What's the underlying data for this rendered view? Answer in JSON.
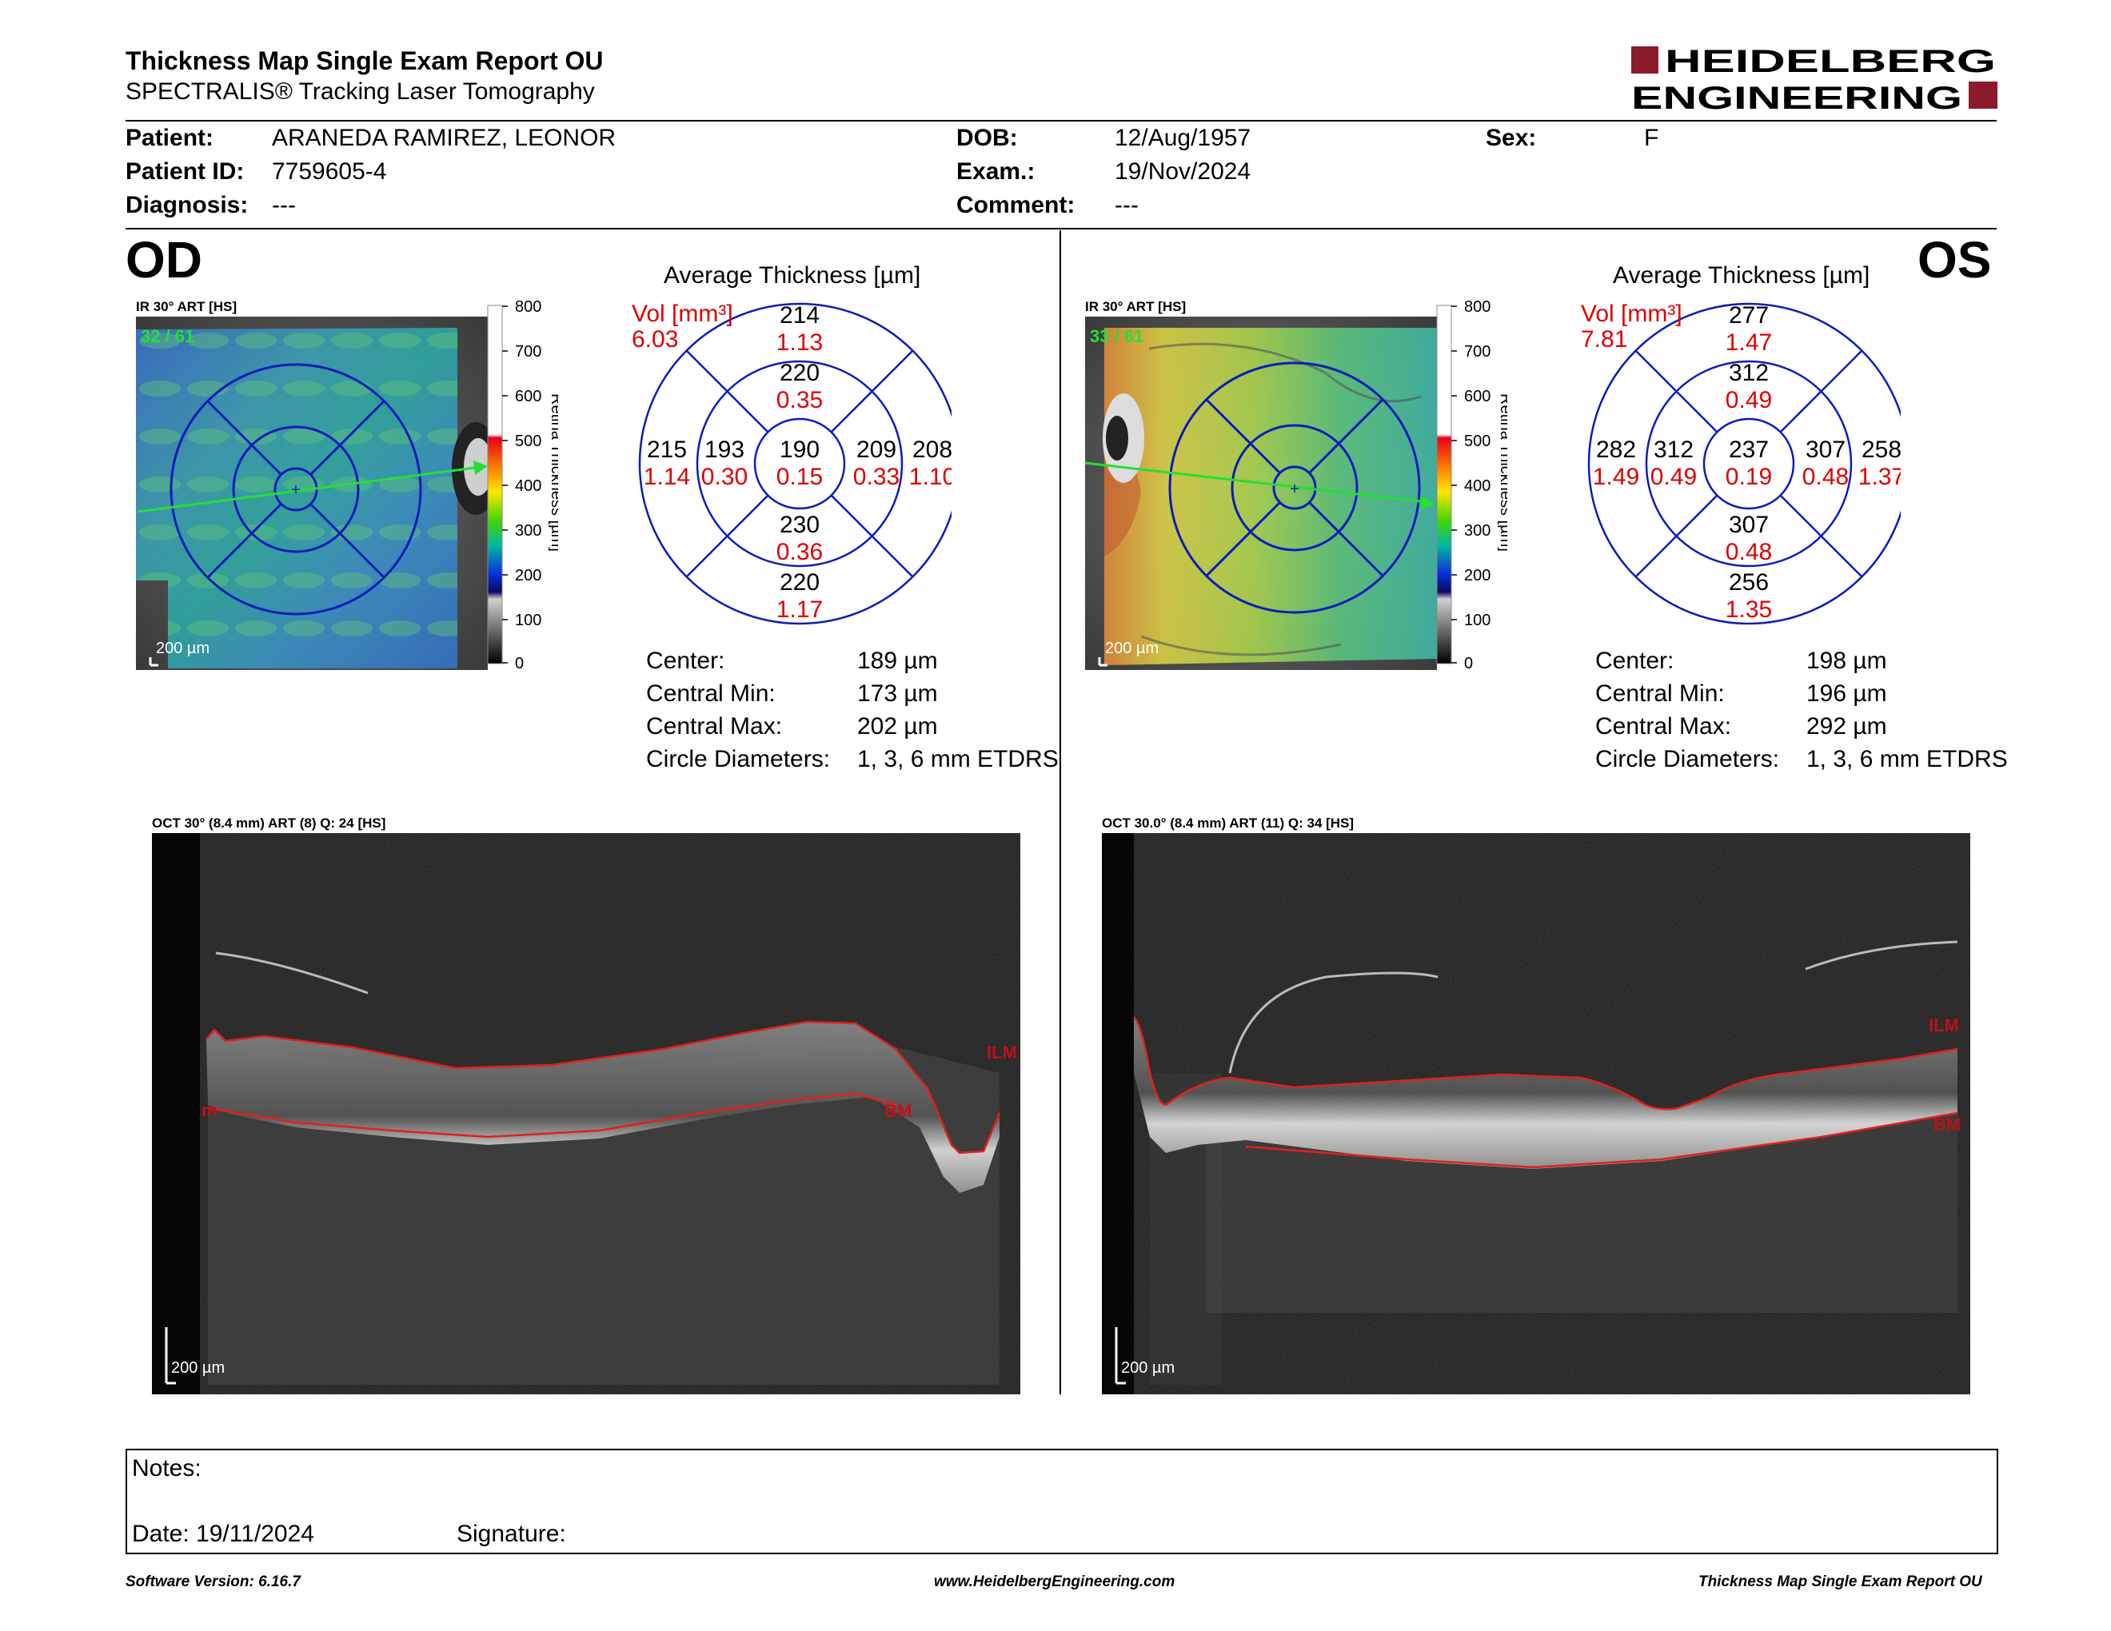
{
  "header": {
    "title": "Thickness Map Single Exam Report OU",
    "subtitle": "SPECTRALIS® Tracking Laser Tomography",
    "logo_line1": "HEIDELBERG",
    "logo_line2": "ENGINEERING",
    "brand_color": "#8b1a2b"
  },
  "patient": {
    "patient_label": "Patient:",
    "patient_value": "ARANEDA RAMIREZ, LEONOR",
    "id_label": "Patient ID:",
    "id_value": "7759605-4",
    "diagnosis_label": "Diagnosis:",
    "diagnosis_value": "---",
    "dob_label": "DOB:",
    "dob_value": "12/Aug/1957",
    "exam_label": "Exam.:",
    "exam_value": "19/Nov/2024",
    "comment_label": "Comment:",
    "comment_value": "---",
    "sex_label": "Sex:",
    "sex_value": "F"
  },
  "od": {
    "eye": "OD",
    "ir_label": "IR 30° ART [HS]",
    "ir_counter": "32 / 61",
    "ir_scalebar": "200 µm",
    "avg_title": "Average Thickness [µm]",
    "vol_label": "Vol [mm³]",
    "vol_total": "6.03",
    "grid": {
      "outer_top": "214",
      "outer_top_vol": "1.13",
      "inner_top": "220",
      "inner_top_vol": "0.35",
      "outer_left": "215",
      "outer_left_vol": "1.14",
      "inner_left": "193",
      "inner_left_vol": "0.30",
      "center": "190",
      "center_vol": "0.15",
      "inner_right": "209",
      "inner_right_vol": "0.33",
      "outer_right": "208",
      "outer_right_vol": "1.10",
      "inner_bottom": "230",
      "inner_bottom_vol": "0.36",
      "outer_bottom": "220",
      "outer_bottom_vol": "1.17"
    },
    "stats": {
      "center_label": "Center:",
      "center_value": "189 µm",
      "cmin_label": "Central Min:",
      "cmin_value": "173 µm",
      "cmax_label": "Central Max:",
      "cmax_value": "202 µm",
      "diam_label": "Circle Diameters:",
      "diam_value": "1, 3, 6 mm ETDRS"
    },
    "oct_label": "OCT 30° (8.4 mm) ART (8) Q: 24 [HS]",
    "oct_scalebar": "200 µm",
    "ilm": "ILM",
    "bm": "BM",
    "bm_partial": "m"
  },
  "os": {
    "eye": "OS",
    "ir_label": "IR 30° ART [HS]",
    "ir_counter": "33 / 61",
    "ir_scalebar": "200 µm",
    "avg_title": "Average Thickness [µm]",
    "vol_label": "Vol [mm³]",
    "vol_total": "7.81",
    "grid": {
      "outer_top": "277",
      "outer_top_vol": "1.47",
      "inner_top": "312",
      "inner_top_vol": "0.49",
      "outer_left": "282",
      "outer_left_vol": "1.49",
      "inner_left": "312",
      "inner_left_vol": "0.49",
      "center": "237",
      "center_vol": "0.19",
      "inner_right": "307",
      "inner_right_vol": "0.48",
      "outer_right": "258",
      "outer_right_vol": "1.37",
      "inner_bottom": "307",
      "inner_bottom_vol": "0.48",
      "outer_bottom": "256",
      "outer_bottom_vol": "1.35"
    },
    "stats": {
      "center_label": "Center:",
      "center_value": "198 µm",
      "cmin_label": "Central Min:",
      "cmin_value": "196 µm",
      "cmax_label": "Central Max:",
      "cmax_value": "292 µm",
      "diam_label": "Circle Diameters:",
      "diam_value": "1, 3, 6 mm ETDRS"
    },
    "oct_label": "OCT 30.0° (8.4 mm) ART (11) Q: 34 [HS]",
    "oct_scalebar": "200 µm",
    "ilm": "ILM",
    "bm": "BM"
  },
  "colorbar": {
    "ticks": [
      "800",
      "700",
      "600",
      "500",
      "400",
      "300",
      "200",
      "100",
      "0"
    ],
    "title": "Retina Thickness [µm]"
  },
  "notes": {
    "notes_label": "Notes:",
    "date_label": "Date: 19/11/2024",
    "signature_label": "Signature:"
  },
  "footer": {
    "version": "Software Version: 6.16.7",
    "url": "www.HeidelbergEngineering.com",
    "report": "Thickness Map Single Exam Report OU"
  }
}
